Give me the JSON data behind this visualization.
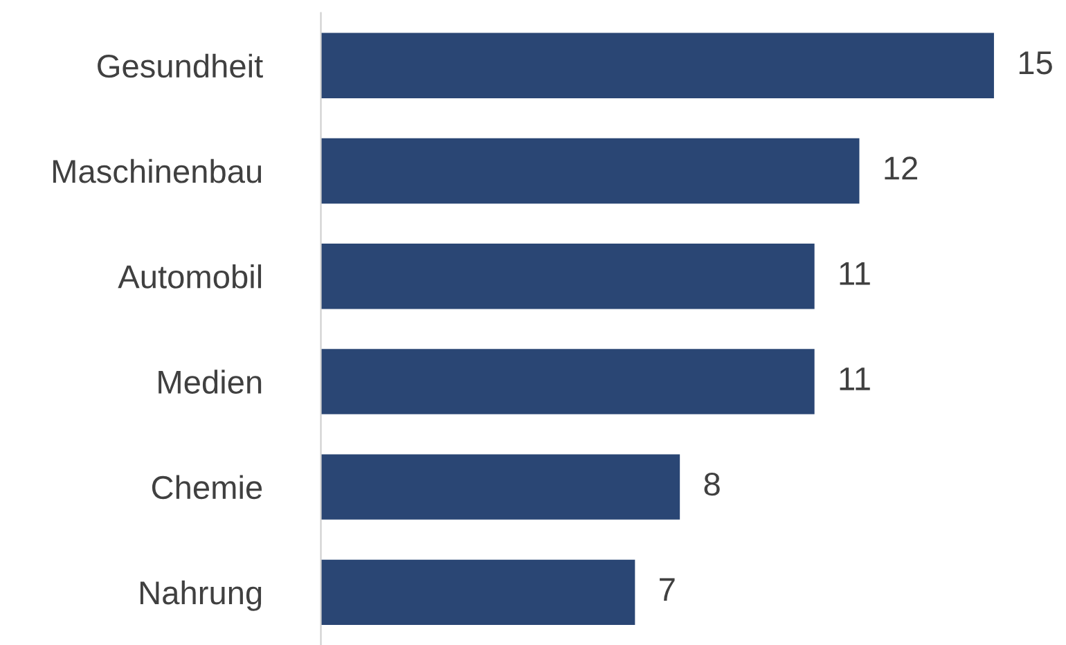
{
  "chart_data": {
    "type": "bar",
    "orientation": "horizontal",
    "categories": [
      "Gesundheit",
      "Maschinenbau",
      "Automobil",
      "Medien",
      "Chemie",
      "Nahrung"
    ],
    "values": [
      15,
      12,
      11,
      11,
      8,
      7
    ],
    "color": "#2a4674",
    "data_labels": true,
    "grid": false,
    "legend": false
  }
}
